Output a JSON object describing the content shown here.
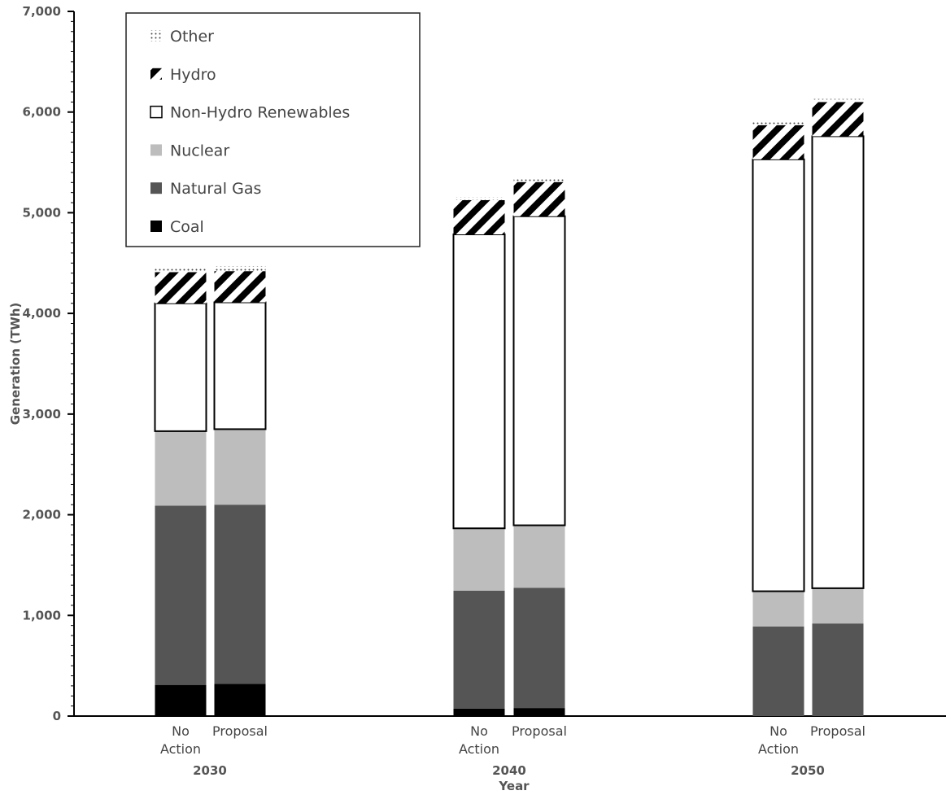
{
  "chart_data": {
    "type": "bar",
    "stacked": true,
    "title": "",
    "xlabel": "Year",
    "ylabel": "Generation (TWh)",
    "ylim": [
      0,
      7000
    ],
    "yticks": [
      0,
      1000,
      2000,
      3000,
      4000,
      5000,
      6000,
      7000
    ],
    "ytick_labels": [
      "0",
      "1,000",
      "2,000",
      "3,000",
      "4,000",
      "5,000",
      "6,000",
      "7,000"
    ],
    "legend_position": "top-left",
    "groups": [
      {
        "label": "2030",
        "bars": [
          {
            "label": "No Action",
            "label_lines": [
              "No",
              "Action"
            ]
          },
          {
            "label": "Proposal",
            "label_lines": [
              "Proposal"
            ]
          }
        ]
      },
      {
        "label": "2040",
        "bars": [
          {
            "label": "No Action",
            "label_lines": [
              "No",
              "Action"
            ]
          },
          {
            "label": "Proposal",
            "label_lines": [
              "Proposal"
            ]
          }
        ]
      },
      {
        "label": "2050",
        "bars": [
          {
            "label": "No Action",
            "label_lines": [
              "No",
              "Action"
            ]
          },
          {
            "label": "Proposal",
            "label_lines": [
              "Proposal"
            ]
          }
        ]
      }
    ],
    "categories": [
      "2030 No Action",
      "2030 Proposal",
      "2040 No Action",
      "2040 Proposal",
      "2050 No Action",
      "2050 Proposal"
    ],
    "series": [
      {
        "name": "Coal",
        "pattern": "solid-black",
        "values": [
          310,
          320,
          75,
          80,
          0,
          0
        ]
      },
      {
        "name": "Natural Gas",
        "pattern": "dark-gray",
        "values": [
          1780,
          1780,
          1170,
          1195,
          890,
          920
        ]
      },
      {
        "name": "Nuclear",
        "pattern": "light-gray",
        "values": [
          740,
          750,
          620,
          620,
          350,
          350
        ]
      },
      {
        "name": "Non-Hydro Renewables",
        "pattern": "white",
        "values": [
          1270,
          1260,
          2920,
          3070,
          4290,
          4490
        ]
      },
      {
        "name": "Hydro",
        "pattern": "diagonal-hatch",
        "values": [
          310,
          310,
          340,
          340,
          340,
          340
        ]
      },
      {
        "name": "Other",
        "pattern": "dots",
        "values": [
          50,
          50,
          30,
          30,
          30,
          30
        ]
      }
    ],
    "legend_order": [
      "Other",
      "Hydro",
      "Non-Hydro Renewables",
      "Nuclear",
      "Natural Gas",
      "Coal"
    ]
  }
}
